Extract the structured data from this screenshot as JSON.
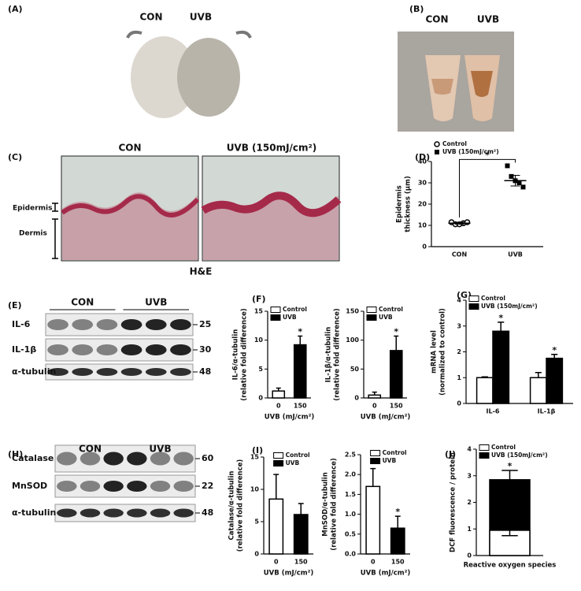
{
  "panels": {
    "A": {
      "label": "(A)",
      "groups": [
        "CON",
        "UVB"
      ]
    },
    "B": {
      "label": "(B)",
      "groups": [
        "CON",
        "UVB"
      ]
    },
    "C": {
      "label": "(C)",
      "groups": [
        "CON",
        "UVB (150mJ/cm²)"
      ],
      "layers": [
        "Epidermis",
        "Dermis"
      ],
      "stain": "H&E"
    },
    "D": {
      "label": "(D)"
    },
    "E": {
      "label": "(E)",
      "groups": [
        "CON",
        "UVB"
      ],
      "rows": [
        {
          "protein": "IL-6",
          "kda": 25
        },
        {
          "protein": "IL-1β",
          "kda": 30
        },
        {
          "protein": "α-tubulin",
          "kda": 48
        }
      ]
    },
    "F": {
      "label": "(F)"
    },
    "G": {
      "label": "(G)"
    },
    "H": {
      "label": "(H)",
      "groups": [
        "CON",
        "UVB"
      ],
      "rows": [
        {
          "protein": "Catalase",
          "kda": 60
        },
        {
          "protein": "MnSOD",
          "kda": 22
        },
        {
          "protein": "α-tubulin",
          "kda": 48
        }
      ]
    },
    "I": {
      "label": "(I)"
    },
    "J": {
      "label": "(J)"
    }
  },
  "chart_data": [
    {
      "type": "scatter",
      "ylabel": [
        "Epidermis",
        "thickness (μm)"
      ],
      "categories": [
        "CON",
        "UVB"
      ],
      "series": [
        {
          "name": "Control",
          "marker": "open-circle",
          "values": [
            [
              11.5,
              10.5,
              10.5,
              11,
              11.5
            ],
            null
          ],
          "mean": [
            11,
            null
          ],
          "sem": [
            0.5,
            null
          ]
        },
        {
          "name": "UVB (150mJ/cm²)",
          "marker": "square",
          "values": [
            null,
            [
              38,
              33,
              31,
              30,
              28
            ]
          ],
          "mean": [
            null,
            31
          ],
          "sem": [
            null,
            2.5
          ]
        }
      ],
      "ylim": [
        0,
        40
      ],
      "yticks": [
        0,
        10,
        20,
        30,
        40
      ],
      "legend": "above",
      "annotations": [
        {
          "text": "*",
          "between": [
            "CON",
            "UVB"
          ]
        }
      ]
    },
    {
      "type": "bar",
      "ylabel": [
        "IL-6/α-tubulin",
        "(relative fold difference)"
      ],
      "xlabel": "UVB (mJ/cm²)",
      "categories": [
        "0",
        "150"
      ],
      "series": [
        {
          "name": "Control",
          "color": "#ffffff",
          "values": [
            1.2,
            null
          ],
          "errors": [
            0.5,
            null
          ]
        },
        {
          "name": "UVB",
          "color": "#000000",
          "values": [
            null,
            9.2
          ],
          "errors": [
            null,
            1.5
          ]
        }
      ],
      "ylim": [
        0,
        15
      ],
      "yticks": [
        0,
        5,
        10,
        15
      ],
      "legend": "upper left",
      "annotations": [
        {
          "text": "*",
          "series": "UVB",
          "category": "150"
        }
      ]
    },
    {
      "type": "bar",
      "ylabel": [
        "IL-1β/α-tubulin",
        "(relative fold difference)"
      ],
      "xlabel": "UVB (mJ/cm²)",
      "categories": [
        "0",
        "150"
      ],
      "series": [
        {
          "name": "Control",
          "color": "#ffffff",
          "values": [
            5,
            null
          ],
          "errors": [
            5,
            null
          ]
        },
        {
          "name": "UVB",
          "color": "#000000",
          "values": [
            null,
            82
          ],
          "errors": [
            null,
            25
          ]
        }
      ],
      "ylim": [
        0,
        150
      ],
      "yticks": [
        0,
        50,
        100,
        150
      ],
      "legend": "upper left",
      "annotations": [
        {
          "text": "*",
          "series": "UVB",
          "category": "150"
        }
      ]
    },
    {
      "type": "bar",
      "ylabel": [
        "mRNA level",
        "(normalized to control)"
      ],
      "categories": [
        "IL-6",
        "IL-1β"
      ],
      "series": [
        {
          "name": "Control",
          "color": "#ffffff",
          "values": [
            1.0,
            1.0
          ],
          "errors": [
            0.03,
            0.2
          ]
        },
        {
          "name": "UVB (150mJ/cm²)",
          "color": "#000000",
          "values": [
            2.8,
            1.75
          ],
          "errors": [
            0.35,
            0.15
          ]
        }
      ],
      "ylim": [
        0,
        4
      ],
      "yticks": [
        0,
        1,
        2,
        3,
        4
      ],
      "legend": "upper left",
      "annotations": [
        {
          "text": "*",
          "series": "UVB (150mJ/cm²)",
          "category": "IL-6"
        },
        {
          "text": "*",
          "series": "UVB (150mJ/cm²)",
          "category": "IL-1β"
        }
      ]
    },
    {
      "type": "bar",
      "ylabel": [
        "Catalase/α-tubulin",
        "(relative fold difference)"
      ],
      "xlabel": "UVB (mJ/cm²)",
      "categories": [
        "0",
        "150"
      ],
      "series": [
        {
          "name": "Control",
          "color": "#ffffff",
          "values": [
            8.5,
            null
          ],
          "errors": [
            3.8,
            null
          ]
        },
        {
          "name": "UVB",
          "color": "#000000",
          "values": [
            null,
            6.1
          ],
          "errors": [
            null,
            1.7
          ]
        }
      ],
      "ylim": [
        0,
        15
      ],
      "yticks": [
        0,
        5,
        10,
        15
      ],
      "legend": "upper right"
    },
    {
      "type": "bar",
      "ylabel": [
        "MnSOD/α-tubulin",
        "(relative fold difference)"
      ],
      "xlabel": "UVB (mJ/cm²)",
      "categories": [
        "0",
        "150"
      ],
      "series": [
        {
          "name": "Control",
          "color": "#ffffff",
          "values": [
            1.7,
            null
          ],
          "errors": [
            0.45,
            null
          ]
        },
        {
          "name": "UVB",
          "color": "#000000",
          "values": [
            null,
            0.65
          ],
          "errors": [
            null,
            0.3
          ]
        }
      ],
      "ylim": [
        0,
        2.5
      ],
      "yticks": [
        {
          "value": 0,
          "label": "0.0"
        },
        0.5,
        {
          "value": 1,
          "label": "1.0"
        },
        1.5,
        {
          "value": 2,
          "label": "2.0"
        },
        2.5
      ],
      "legend": "upper right",
      "annotations": [
        {
          "text": "*",
          "series": "UVB",
          "category": "150"
        }
      ]
    },
    {
      "type": "overlay-bar",
      "ylabel": [
        "DCF fluorescence / protein"
      ],
      "xlabel": "Reactive oxygen species",
      "categories": [
        null
      ],
      "series": [
        {
          "name": "Control",
          "color": "#ffffff",
          "values": [
            0.95
          ],
          "errors": [
            0.2
          ]
        },
        {
          "name": "UVB (150mJ/cm²)",
          "color": "#000000",
          "values": [
            2.85
          ],
          "errors": [
            0.35
          ]
        }
      ],
      "ylim": [
        0,
        4
      ],
      "yticks": [
        0,
        1,
        2,
        3,
        4
      ],
      "legend": "upper left",
      "annotations": [
        {
          "text": "*",
          "series": "UVB (150mJ/cm²)"
        }
      ]
    }
  ]
}
